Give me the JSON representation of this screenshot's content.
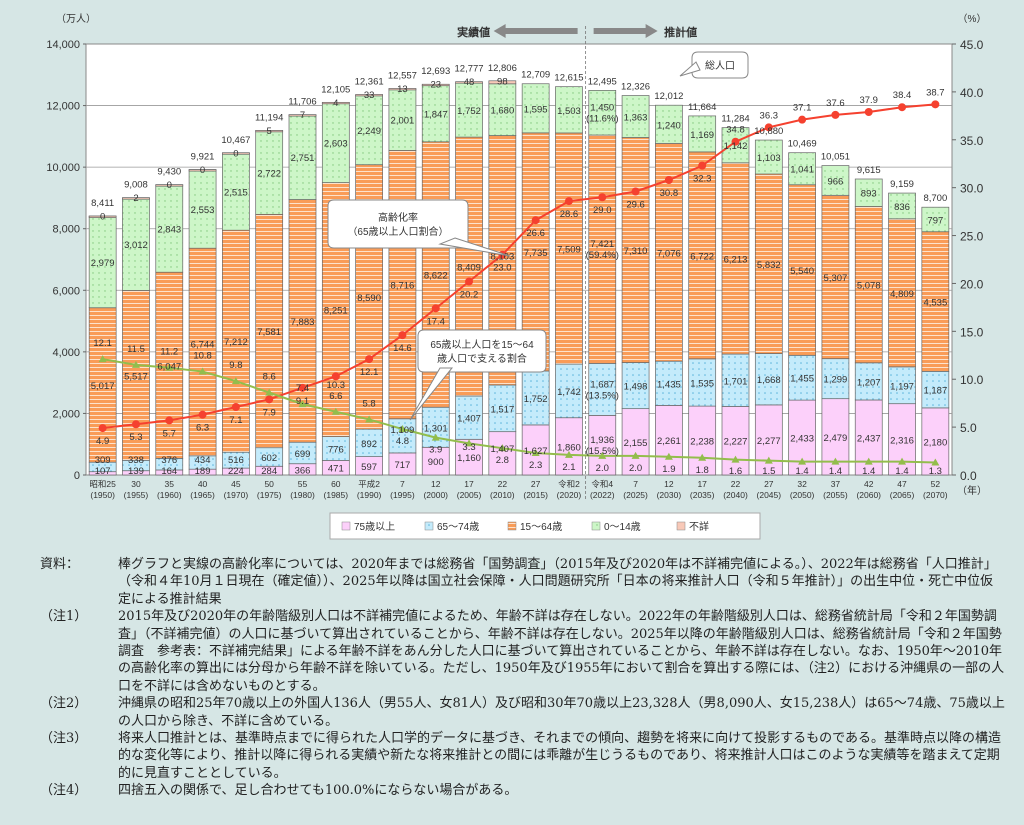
{
  "chart_data": {
    "type": "bar",
    "stacked": true,
    "ylabel_left": "（万人）",
    "ylabel_right": "（%）",
    "xlabel": "（年）",
    "ylim_left": [
      0,
      14000
    ],
    "ylim_right": [
      0,
      45
    ],
    "yticks_left": [
      "0",
      "2,000",
      "4,000",
      "6,000",
      "8,000",
      "10,000",
      "12,000",
      "14,000"
    ],
    "yticks_right": [
      "0.0",
      "5.0",
      "10.0",
      "15.0",
      "20.0",
      "25.0",
      "30.0",
      "35.0",
      "40.0",
      "45.0"
    ],
    "grid": true,
    "categories": [
      [
        "昭和25",
        "(1950)"
      ],
      [
        "30",
        "(1955)"
      ],
      [
        "35",
        "(1960)"
      ],
      [
        "40",
        "(1965)"
      ],
      [
        "45",
        "(1970)"
      ],
      [
        "50",
        "(1975)"
      ],
      [
        "55",
        "(1980)"
      ],
      [
        "60",
        "(1985)"
      ],
      [
        "平成2",
        "(1990)"
      ],
      [
        "7",
        "(1995)"
      ],
      [
        "12",
        "(2000)"
      ],
      [
        "17",
        "(2005)"
      ],
      [
        "22",
        "(2010)"
      ],
      [
        "27",
        "(2015)"
      ],
      [
        "令和2",
        "(2020)"
      ],
      [
        "令和4",
        "(2022)"
      ],
      [
        "7",
        "(2025)"
      ],
      [
        "12",
        "(2030)"
      ],
      [
        "17",
        "(2035)"
      ],
      [
        "22",
        "(2040)"
      ],
      [
        "27",
        "(2045)"
      ],
      [
        "32",
        "(2050)"
      ],
      [
        "37",
        "(2055)"
      ],
      [
        "42",
        "(2060)"
      ],
      [
        "47",
        "(2065)"
      ],
      [
        "52",
        "(2070)"
      ]
    ],
    "series": [
      {
        "name": "75歳以上",
        "color": "#fcd0fa",
        "values": [
          107,
          139,
          164,
          189,
          224,
          284,
          366,
          471,
          597,
          717,
          900,
          1160,
          1407,
          1627,
          1860,
          1936,
          2155,
          2261,
          2238,
          2227,
          2277,
          2433,
          2479,
          2437,
          2316,
          2180
        ],
        "pct": [
          null,
          null,
          null,
          null,
          null,
          null,
          null,
          null,
          null,
          null,
          null,
          null,
          null,
          null,
          null,
          "(15.5%)",
          null,
          null,
          null,
          null,
          null,
          null,
          null,
          null,
          null,
          null
        ]
      },
      {
        "name": "65～74歳",
        "color": "#c4ebfb",
        "values": [
          309,
          338,
          376,
          434,
          516,
          602,
          699,
          776,
          892,
          1109,
          1301,
          1407,
          1517,
          1752,
          1742,
          1687,
          1498,
          1435,
          1535,
          1701,
          1668,
          1455,
          1299,
          1207,
          1197,
          1187
        ],
        "pct": [
          null,
          null,
          null,
          null,
          null,
          null,
          null,
          null,
          null,
          null,
          null,
          null,
          null,
          null,
          null,
          "(13.5%)",
          null,
          null,
          null,
          null,
          null,
          null,
          null,
          null,
          null,
          null
        ]
      },
      {
        "name": "15～64歳",
        "color": "#f99c58",
        "values": [
          5017,
          5517,
          6047,
          6744,
          7212,
          7581,
          7883,
          8251,
          8590,
          8716,
          8622,
          8409,
          8103,
          7735,
          7509,
          7421,
          7310,
          7076,
          6722,
          6213,
          5832,
          5540,
          5307,
          5078,
          4809,
          4535
        ],
        "pct": [
          null,
          null,
          null,
          null,
          null,
          null,
          null,
          null,
          null,
          null,
          null,
          null,
          null,
          null,
          null,
          "(59.4%)",
          null,
          null,
          null,
          null,
          null,
          null,
          null,
          null,
          null,
          null
        ]
      },
      {
        "name": "0～14歳",
        "color": "#cdf6c8",
        "values": [
          2979,
          3012,
          2843,
          2553,
          2515,
          2722,
          2751,
          2603,
          2249,
          2001,
          1847,
          1752,
          1680,
          1595,
          1503,
          1450,
          1363,
          1240,
          1169,
          1142,
          1103,
          1041,
          966,
          893,
          836,
          797
        ],
        "pct": [
          null,
          null,
          null,
          null,
          null,
          null,
          null,
          null,
          null,
          null,
          null,
          null,
          null,
          null,
          null,
          "(11.6%)",
          null,
          null,
          null,
          null,
          null,
          null,
          null,
          null,
          null,
          null
        ]
      },
      {
        "name": "不詳",
        "color": "#f8c9b8",
        "values": [
          0,
          2,
          0,
          0,
          0,
          5,
          7,
          4,
          33,
          13,
          23,
          48,
          98,
          null,
          null,
          null,
          null,
          null,
          null,
          null,
          null,
          null,
          null,
          null,
          null,
          null
        ]
      }
    ],
    "totals": [
      8411,
      9008,
      9430,
      9921,
      10467,
      11194,
      11706,
      12105,
      12361,
      12557,
      12693,
      12777,
      12806,
      12709,
      12615,
      12495,
      12326,
      12012,
      11664,
      11284,
      10880,
      10469,
      10051,
      9615,
      9159,
      8700
    ],
    "lines": [
      {
        "name": "高齢化率（65歳以上人口割合）",
        "axis": "right",
        "color": "#f5412f",
        "marker": "circle",
        "values": [
          4.9,
          5.3,
          5.7,
          6.3,
          7.1,
          7.9,
          9.1,
          10.3,
          12.1,
          14.6,
          17.4,
          20.2,
          23.0,
          26.6,
          28.6,
          29.0,
          29.6,
          30.8,
          32.3,
          34.8,
          36.3,
          37.1,
          37.6,
          37.9,
          38.4,
          38.7
        ]
      },
      {
        "name": "65歳以上人口を15～64歳人口で支える割合",
        "axis": "right",
        "color": "#93bd4c",
        "marker": "triangle",
        "values": [
          12.1,
          11.5,
          11.2,
          10.8,
          9.8,
          8.6,
          7.4,
          6.6,
          5.8,
          4.8,
          3.9,
          3.3,
          2.8,
          2.3,
          2.1,
          2.0,
          2.0,
          1.9,
          1.8,
          1.6,
          1.5,
          1.4,
          1.4,
          1.4,
          1.4,
          1.3
        ]
      }
    ],
    "annotations": {
      "actual": "実績値",
      "projected": "推計値",
      "total_callout": "総人口",
      "aging_callout": [
        "高齢化率",
        "（65歳以上人口割合）"
      ],
      "support_callout": [
        "65歳以上人口を15～64",
        "歳人口で支える割合"
      ]
    },
    "legend_placement": "bottom"
  },
  "notes": [
    {
      "label": "資料：",
      "text": "棒グラフと実線の高齢化率については、2020年までは総務省「国勢調査」（2015年及び2020年は不詳補完値による。）、2022年は総務省「人口推計」（令和４年10月１日現在（確定値））、2025年以降は国立社会保障・人口問題研究所「日本の将来推計人口（令和５年推計）」の出生中位・死亡中位仮定による推計結果"
    },
    {
      "label": "（注1）",
      "text": "2015年及び2020年の年齢階級別人口は不詳補完値によるため、年齢不詳は存在しない。2022年の年齢階級別人口は、総務省統計局「令和２年国勢調査」（不詳補完値）の人口に基づいて算出されていることから、年齢不詳は存在しない。2025年以降の年齢階級別人口は、総務省統計局「令和２年国勢調査　参考表：不詳補完結果」による年齢不詳をあん分した人口に基づいて算出されていることから、年齢不詳は存在しない。なお、1950年～2010年の高齢化率の算出には分母から年齢不詳を除いている。ただし、1950年及び1955年において割合を算出する際には、（注2）における沖縄県の一部の人口を不詳には含めないものとする。"
    },
    {
      "label": "（注2）",
      "text": "沖縄県の昭和25年70歳以上の外国人136人（男55人、女81人）及び昭和30年70歳以上23,328人（男8,090人、女15,238人）は65～74歳、75歳以上の人口から除き、不詳に含めている。"
    },
    {
      "label": "（注3）",
      "text": "将来人口推計とは、基準時点までに得られた人口学的データに基づき、それまでの傾向、趨勢を将来に向けて投影するものである。基準時点以降の構造的な変化等により、推計以降に得られる実績や新たな将来推計との間には乖離が生じうるものであり、将来推計人口はこのような実績等を踏まえて定期的に見直すこととしている。"
    },
    {
      "label": "（注4）",
      "text": "四捨五入の関係で、足し合わせても100.0%にならない場合がある。"
    }
  ]
}
